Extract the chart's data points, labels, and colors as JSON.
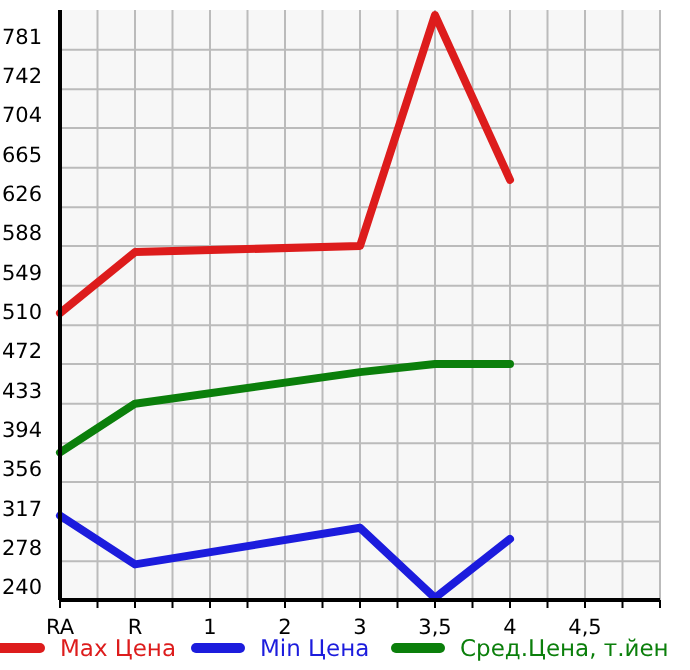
{
  "chart_data": {
    "type": "line",
    "categories": [
      "RA",
      "R",
      "1",
      "2",
      "3",
      "3,5",
      "4",
      "4,5"
    ],
    "series": [
      {
        "name": "Max Цена",
        "color": "#dd1c1c",
        "values": [
          522,
          582,
          null,
          null,
          588,
          815,
          653,
          null
        ]
      },
      {
        "name": "Min Цена",
        "color": "#1c1cdd",
        "values": [
          323,
          275,
          null,
          null,
          311,
          242,
          300,
          null
        ]
      },
      {
        "name": "Сред.Цена, т.йен",
        "color": "#0b7f0b",
        "values": [
          385,
          433,
          null,
          null,
          464,
          472,
          472,
          null
        ]
      }
    ],
    "ylim": [
      240,
      820
    ],
    "yticks": [
      240,
      278,
      317,
      356,
      394,
      433,
      472,
      510,
      549,
      588,
      626,
      665,
      704,
      742,
      781
    ],
    "grid": true,
    "legend": "bottom",
    "marker": "none",
    "line_style": "solid"
  }
}
